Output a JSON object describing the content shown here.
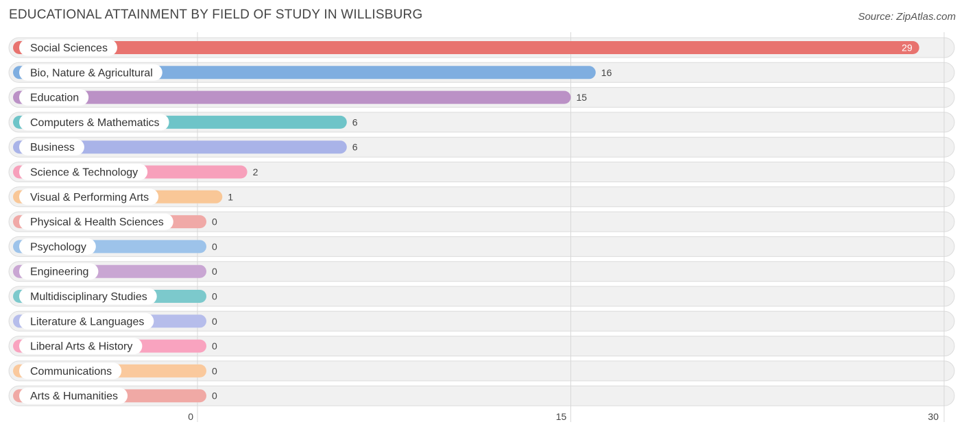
{
  "header": {
    "title": "EDUCATIONAL ATTAINMENT BY FIELD OF STUDY IN WILLISBURG",
    "source": "Source: ZipAtlas.com"
  },
  "chart_data": {
    "type": "bar",
    "orientation": "horizontal",
    "title": "EDUCATIONAL ATTAINMENT BY FIELD OF STUDY IN WILLISBURG",
    "categories": [
      "Social Sciences",
      "Bio, Nature & Agricultural",
      "Education",
      "Computers & Mathematics",
      "Business",
      "Science & Technology",
      "Visual & Performing Arts",
      "Physical & Health Sciences",
      "Psychology",
      "Engineering",
      "Multidisciplinary Studies",
      "Literature & Languages",
      "Liberal Arts & History",
      "Communications",
      "Arts & Humanities"
    ],
    "values": [
      29,
      16,
      15,
      6,
      6,
      2,
      1,
      0,
      0,
      0,
      0,
      0,
      0,
      0,
      0
    ],
    "colors": [
      "#e8736f",
      "#7faee0",
      "#bb91c6",
      "#6ec4c8",
      "#a9b3e8",
      "#f7a0bb",
      "#f9c797",
      "#f0a9a7",
      "#9dc3ea",
      "#c9a6d3",
      "#7cc9cc",
      "#b6bdeb",
      "#f9a3bf",
      "#fac99d",
      "#f0a9a5"
    ],
    "xlim": [
      0,
      30
    ],
    "xticks": [
      "0",
      "15",
      "30"
    ],
    "grid": true
  }
}
